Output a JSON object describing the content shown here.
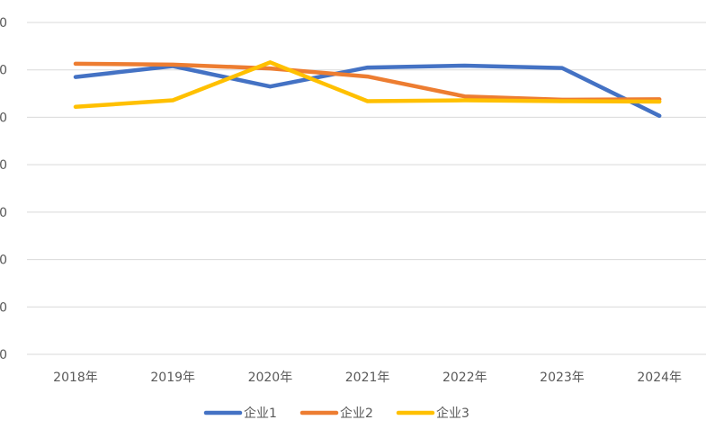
{
  "chart_data": {
    "type": "line",
    "categories": [
      "2018年",
      "2019年",
      "2020年",
      "2021年",
      "2022年",
      "2023年",
      "2024年"
    ],
    "y_tick_labels": [
      "0",
      "0",
      "0",
      "0",
      "0",
      "0",
      "0",
      "0"
    ],
    "ylim": [
      0,
      7
    ],
    "grid": true,
    "legend_position": "bottom",
    "series": [
      {
        "name": "企业1",
        "color": "#4472c4",
        "values": [
          5.85,
          6.08,
          5.65,
          6.05,
          6.09,
          6.04,
          5.03
        ]
      },
      {
        "name": "企业2",
        "color": "#ed7d31",
        "values": [
          6.13,
          6.11,
          6.03,
          5.86,
          5.44,
          5.37,
          5.38
        ]
      },
      {
        "name": "企业3",
        "color": "#ffc000",
        "values": [
          5.22,
          5.36,
          6.16,
          5.34,
          5.36,
          5.34,
          5.33
        ]
      }
    ]
  }
}
